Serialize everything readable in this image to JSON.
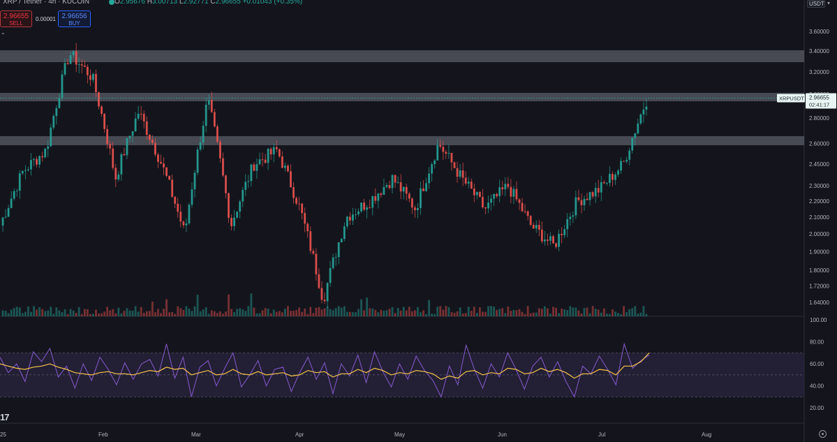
{
  "header": {
    "symbol_title": "XRP / Tether · 4h · KUCOIN",
    "ohlc": {
      "open_label": "O",
      "open": "2.95676",
      "high_label": "H",
      "high": "3.00713",
      "low_label": "L",
      "low": "2.92771",
      "close_label": "C",
      "close": "2.96655",
      "change": "+0.01043 (+0.35%)"
    },
    "currency": "USDT"
  },
  "trade_panel": {
    "sell_price": "2.96655",
    "sell_label": "SELL",
    "spread": "0.00001",
    "buy_price": "2.96656",
    "buy_label": "BUY"
  },
  "price_axis": [
    "3.60000",
    "3.40000",
    "3.20000",
    "3.00000",
    "2.80000",
    "2.60000",
    "2.45000",
    "2.30000",
    "2.20000",
    "2.10000",
    "2.00000",
    "1.90000",
    "1.80000",
    "1.72000",
    "1.64000"
  ],
  "last_price_label": {
    "symbol": "XRPUSDT",
    "price": "2.96655",
    "countdown": "02:41:17"
  },
  "rsi_axis": [
    "100.00",
    "80.00",
    "60.00",
    "40.00",
    "20.00"
  ],
  "time_axis": [
    "25",
    "Feb",
    "Mar",
    "Apr",
    "May",
    "Jun",
    "Jul",
    "Aug"
  ],
  "colors": {
    "background": "#14151c",
    "up": "#26a69a",
    "down": "#ef5350",
    "zone": "#5d606b",
    "rsi_line": "#7e57c2",
    "rsi_ma": "#f7c548",
    "rsi_band": "#2a2440",
    "last_price": "#26a69a"
  },
  "chart_data": [
    {
      "type": "candlestick",
      "title": "XRP / Tether · 4h · KUCOIN",
      "x_categories": [
        "25",
        "Feb",
        "Mar",
        "Apr",
        "May",
        "Jun",
        "Jul",
        "Aug"
      ],
      "ylim": [
        1.6,
        3.7
      ],
      "y_scale": "log",
      "last_price": 2.96655,
      "swing_points": [
        {
          "x": "25",
          "y": 2.05
        },
        {
          "x": "25",
          "y": 2.4
        },
        {
          "x": "25",
          "y": 2.55
        },
        {
          "x": "25",
          "y": 3.38
        },
        {
          "x": "Feb",
          "y": 3.15
        },
        {
          "x": "Feb",
          "y": 2.35
        },
        {
          "x": "Feb",
          "y": 2.85
        },
        {
          "x": "Feb",
          "y": 2.45
        },
        {
          "x": "Mar",
          "y": 2.0
        },
        {
          "x": "Mar",
          "y": 2.95
        },
        {
          "x": "Mar",
          "y": 2.05
        },
        {
          "x": "Mar",
          "y": 2.45
        },
        {
          "x": "Mar",
          "y": 2.55
        },
        {
          "x": "Mar",
          "y": 2.15
        },
        {
          "x": "Apr",
          "y": 1.65
        },
        {
          "x": "Apr",
          "y": 2.1
        },
        {
          "x": "Apr",
          "y": 2.2
        },
        {
          "x": "May",
          "y": 2.35
        },
        {
          "x": "May",
          "y": 2.15
        },
        {
          "x": "May",
          "y": 2.6
        },
        {
          "x": "May",
          "y": 2.35
        },
        {
          "x": "Jun",
          "y": 2.15
        },
        {
          "x": "Jun",
          "y": 2.3
        },
        {
          "x": "Jun",
          "y": 2.05
        },
        {
          "x": "Jul",
          "y": 1.93
        },
        {
          "x": "Jul",
          "y": 2.2
        },
        {
          "x": "Jul",
          "y": 2.28
        },
        {
          "x": "Jul",
          "y": 2.45
        },
        {
          "x": "Jul",
          "y": 2.95
        }
      ],
      "zones": [
        [
          3.3,
          3.42
        ],
        [
          2.95,
          3.0
        ],
        [
          2.59,
          2.65
        ]
      ]
    },
    {
      "type": "line",
      "title": "RSI",
      "ylim": [
        10,
        100
      ],
      "bands": [
        30,
        50,
        70
      ],
      "series": [
        {
          "values": [
            66,
            52,
            60,
            44,
            71,
            62,
            74,
            48,
            58,
            38,
            60,
            45,
            66,
            55,
            41,
            61,
            46,
            60,
            64,
            49,
            78,
            47,
            66,
            30,
            57,
            63,
            40,
            56,
            70,
            39,
            50,
            63,
            40,
            55,
            57,
            35,
            52,
            66,
            46,
            61,
            33,
            60,
            49,
            68,
            43,
            71,
            53,
            39,
            60,
            46,
            67,
            54,
            45,
            30,
            58,
            41,
            77,
            55,
            38,
            60,
            48,
            70,
            55,
            37,
            58,
            66,
            48,
            62,
            44,
            30,
            58,
            51,
            67,
            55,
            41,
            78,
            56,
            63,
            68
          ]
        },
        {
          "values": [
            60,
            58,
            56,
            55,
            57,
            58,
            60,
            57,
            55,
            52,
            51,
            50,
            52,
            53,
            51,
            51,
            50,
            52,
            54,
            53,
            57,
            55,
            56,
            50,
            52,
            54,
            50,
            51,
            55,
            51,
            50,
            53,
            50,
            51,
            52,
            49,
            50,
            54,
            52,
            53,
            48,
            51,
            51,
            55,
            52,
            56,
            54,
            50,
            52,
            51,
            54,
            53,
            51,
            46,
            49,
            47,
            53,
            54,
            50,
            52,
            51,
            56,
            55,
            51,
            52,
            56,
            53,
            55,
            52,
            47,
            51,
            51,
            55,
            54,
            50,
            58,
            58,
            62,
            70
          ]
        }
      ]
    }
  ]
}
